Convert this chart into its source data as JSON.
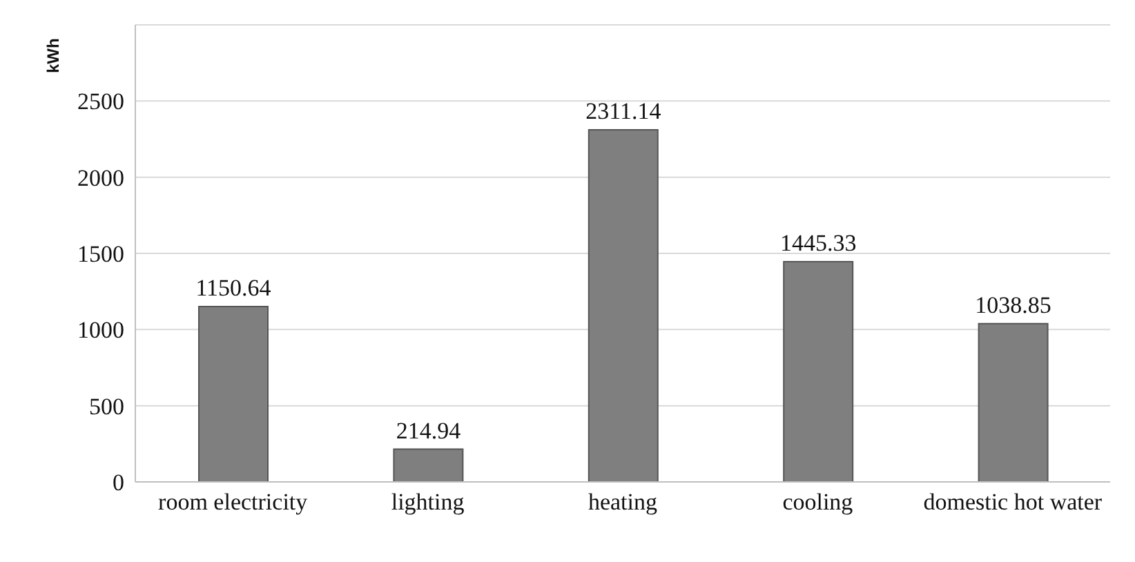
{
  "chart_data": {
    "type": "bar",
    "ylabel": "kWh",
    "categories": [
      "room electricity",
      "lighting",
      "heating",
      "cooling",
      "domestic hot water"
    ],
    "values": [
      1150.64,
      214.94,
      2311.14,
      1445.33,
      1038.85
    ],
    "color": "#7f7f7f",
    "ylim": [
      0,
      3000
    ],
    "yticks": [
      0,
      500,
      1000,
      1500,
      2000,
      2500,
      {
        "value": 3000,
        "label": null
      }
    ],
    "grid": "y",
    "data_labels": true
  }
}
